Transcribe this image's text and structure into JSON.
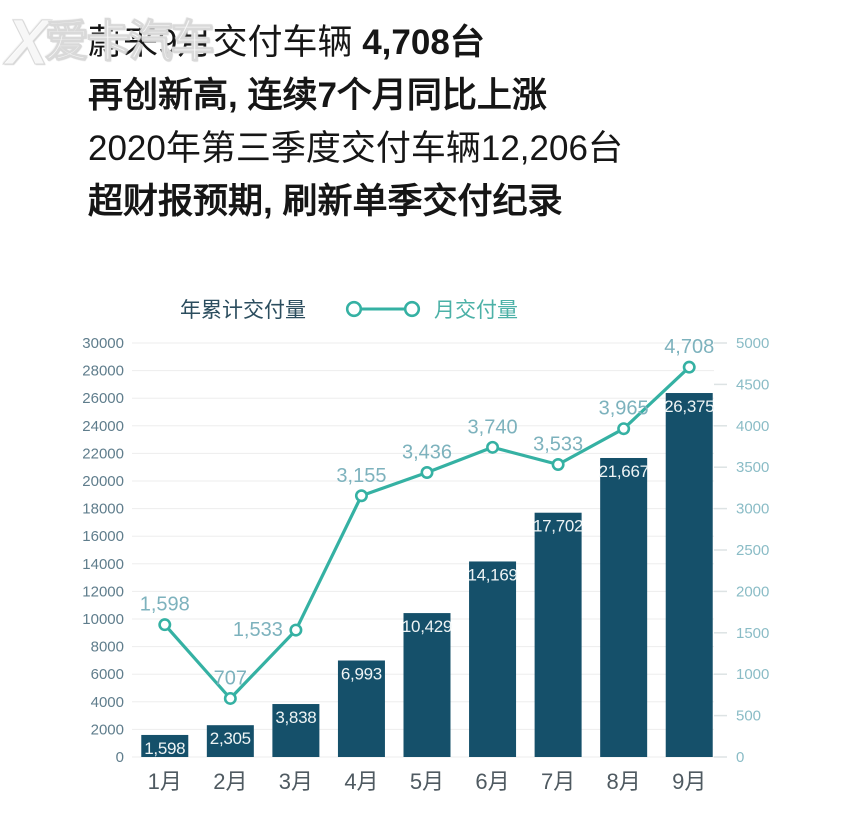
{
  "watermark": {
    "logo": "X",
    "text": "爱卡汽车"
  },
  "header": {
    "line1_regular": "蔚来9月交付车辆 ",
    "line1_bold": "4,708台",
    "line2": "再创新高, 连续7个月同比上涨",
    "line3": "2020年第三季度交付车辆12,206台",
    "line4": "超财报预期, 刷新单季交付纪录"
  },
  "legend": {
    "bar_label": "年累计交付量",
    "line_label": "月交付量"
  },
  "colors": {
    "bar": "#15506a",
    "line": "#35b1a3",
    "bar_label": "#eef4f5",
    "line_label": "#7db2bd",
    "axis_left": "#5f7d8c",
    "axis_right": "#8abcc6",
    "axis_x": "#4f5a61",
    "grid": "#ededed",
    "right_tick": "#dde3e4",
    "legend_bar_text": "#2b4d5e",
    "legend_line_text": "#4cb1a7",
    "title": "#161616",
    "watermark": "#d9d9d9"
  },
  "chart_data": {
    "type": "bar+line",
    "categories": [
      "1月",
      "2月",
      "3月",
      "4月",
      "5月",
      "6月",
      "7月",
      "8月",
      "9月"
    ],
    "series": [
      {
        "name": "年累计交付量",
        "type": "bar",
        "axis": "left",
        "values": [
          1598,
          2305,
          3838,
          6993,
          10429,
          14169,
          17702,
          21667,
          26375
        ],
        "labels": [
          "1,598",
          "2,305",
          "3,838",
          "6,993",
          "10,429",
          "14,169",
          "17,702",
          "21,667",
          "26,375"
        ]
      },
      {
        "name": "月交付量",
        "type": "line",
        "axis": "right",
        "values": [
          1598,
          707,
          1533,
          3155,
          3436,
          3740,
          3533,
          3965,
          4708
        ],
        "labels": [
          "1,598",
          "707",
          "1,533",
          "3,155",
          "3,436",
          "3,740",
          "3,533",
          "3,965",
          "4,708"
        ]
      }
    ],
    "left_axis": {
      "min": 0,
      "max": 30000,
      "step": 2000
    },
    "right_axis": {
      "min": 0,
      "max": 5000,
      "step": 500
    },
    "grid": true,
    "legend_position": "top"
  }
}
